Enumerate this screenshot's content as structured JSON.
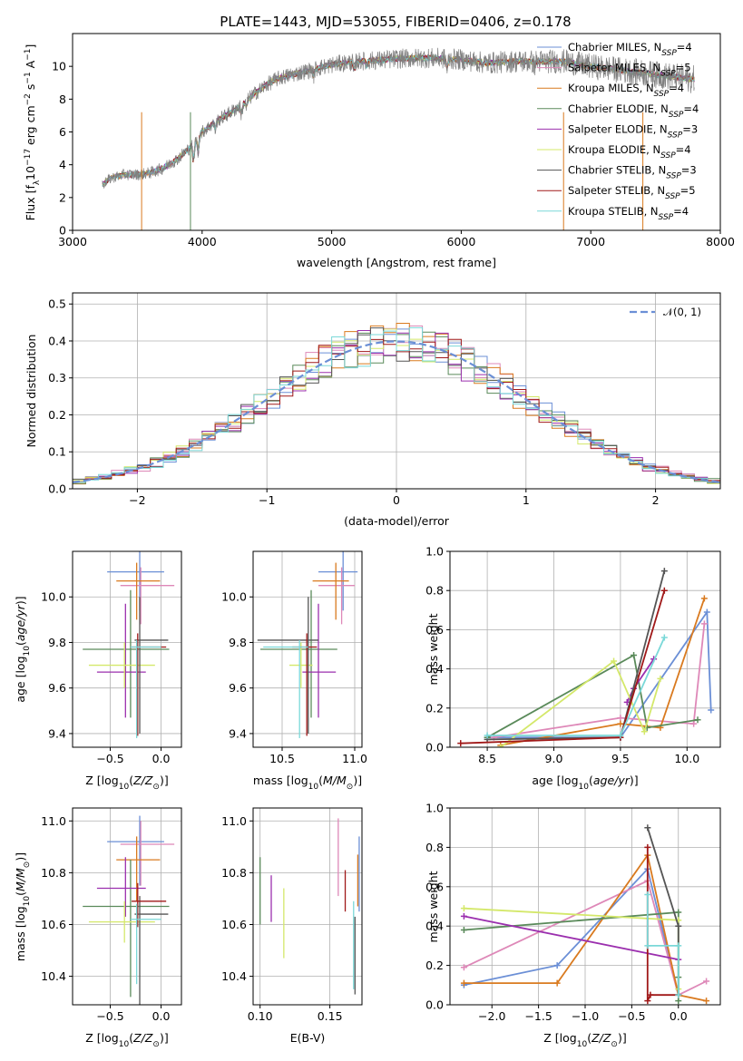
{
  "colors": {
    "chabrier_miles": "#6b8fd6",
    "salpeter_miles": "#de88b8",
    "kroupa_miles": "#d97a1f",
    "chabrier_elodie": "#5a8a5a",
    "salpeter_elodie": "#9b2fae",
    "kroupa_elodie": "#d4e86a",
    "chabrier_stelib": "#555555",
    "salpeter_stelib": "#a01818",
    "kroupa_stelib": "#7ad8d8",
    "gauss": "#6b8fd6"
  },
  "chart_data": [
    {
      "id": "spectrum",
      "type": "line",
      "title": "PLATE=1443, MJD=53055, FIBERID=0406, z=0.178",
      "xlabel": "wavelength [Angstrom, rest frame]",
      "ylabel": "Flux [f_λ10^-17 erg cm^-2 s^-1 A^-1]",
      "xlim": [
        3000,
        8000
      ],
      "ylim": [
        0,
        12
      ],
      "xticks": [
        "3000",
        "4000",
        "5000",
        "6000",
        "7000",
        "8000"
      ],
      "yticks": [
        "0",
        "2",
        "4",
        "6",
        "8",
        "10"
      ],
      "legend_position": "upper-right",
      "legend": [
        "Chabrier MILES, N_SSP=4",
        "Salpeter MILES, N_SSP=5",
        "Kroupa MILES, N_SSP=4",
        "Chabrier ELODIE, N_SSP=4",
        "Salpeter ELODIE, N_SSP=3",
        "Kroupa ELODIE, N_SSP=4",
        "Chabrier STELIB, N_SSP=3",
        "Salpeter STELIB, N_SSP=5",
        "Kroupa STELIB, N_SSP=4"
      ],
      "continuum": {
        "x": [
          3230,
          3300,
          3400,
          3500,
          3600,
          3700,
          3800,
          3900,
          4000,
          4100,
          4200,
          4300,
          4400,
          4500,
          4600,
          4700,
          4800,
          4900,
          5000,
          5200,
          5400,
          5600,
          5800,
          6000,
          6200,
          6400,
          6600,
          6800,
          7000,
          7200,
          7400,
          7600,
          7800
        ],
        "y": [
          2.8,
          3.2,
          3.4,
          3.4,
          3.5,
          3.8,
          4.3,
          5.0,
          6.0,
          6.6,
          7.1,
          7.6,
          8.3,
          8.9,
          9.3,
          9.5,
          9.7,
          9.9,
          10.1,
          10.3,
          10.4,
          10.5,
          10.5,
          10.4,
          10.2,
          10.3,
          10.3,
          10.3,
          10.0,
          9.8,
          9.6,
          9.4,
          9.2
        ]
      }
    },
    {
      "id": "residuals",
      "type": "line",
      "xlabel": "(data-model)/error",
      "ylabel": "Normed distribution",
      "xlim": [
        -2.5,
        2.5
      ],
      "ylim": [
        0,
        0.53
      ],
      "xticks": [
        "−2",
        "−1",
        "0",
        "1",
        "2"
      ],
      "yticks": [
        "0.0",
        "0.1",
        "0.2",
        "0.3",
        "0.4",
        "0.5"
      ],
      "legend": [
        "𝒩(0, 1)"
      ],
      "legend_position": "upper-right",
      "series_note": "step histograms, one per model, bin width 0.1, approximately normal"
    },
    {
      "id": "z-age",
      "type": "scatter",
      "xlabel": "Z [log10(Z/Z⊙)]",
      "ylabel": "age  [log10(age/yr)]",
      "xlim": [
        -0.87,
        0.2
      ],
      "ylim": [
        9.34,
        10.2
      ],
      "xticks": [
        "−0.5",
        "0.0"
      ],
      "yticks": [
        "9.4",
        "9.6",
        "9.8",
        "10.0"
      ],
      "errorbars": [
        {
          "key": "chabrier_miles",
          "x": -0.21,
          "xerr": [
            0.32,
            0.24
          ],
          "y": 10.11,
          "yerr": [
            0.17,
            0.09
          ]
        },
        {
          "key": "salpeter_miles",
          "x": -0.2,
          "xerr": [
            0.2,
            0.33
          ],
          "y": 10.05,
          "yerr": [
            0.17,
            0.08
          ]
        },
        {
          "key": "kroupa_miles",
          "x": -0.24,
          "xerr": [
            0.2,
            0.23
          ],
          "y": 10.07,
          "yerr": [
            0.17,
            0.08
          ]
        },
        {
          "key": "chabrier_elodie",
          "x": -0.3,
          "xerr": [
            0.47,
            0.38
          ],
          "y": 9.77,
          "yerr": [
            0.3,
            0.26
          ]
        },
        {
          "key": "salpeter_elodie",
          "x": -0.35,
          "xerr": [
            0.28,
            0.2
          ],
          "y": 9.67,
          "yerr": [
            0.2,
            0.3
          ]
        },
        {
          "key": "kroupa_elodie",
          "x": -0.36,
          "xerr": [
            0.35,
            0.3
          ],
          "y": 9.7,
          "yerr": [
            0.1,
            0.1
          ]
        },
        {
          "key": "chabrier_stelib",
          "x": -0.21,
          "xerr": [
            0.05,
            0.28
          ],
          "y": 9.81,
          "yerr": [
            0.41,
            0.19
          ]
        },
        {
          "key": "salpeter_stelib",
          "x": -0.23,
          "xerr": [
            0.06,
            0.28
          ],
          "y": 9.78,
          "yerr": [
            0.39,
            0.06
          ]
        },
        {
          "key": "kroupa_stelib",
          "x": -0.24,
          "xerr": [
            0.06,
            0.24
          ],
          "y": 9.78,
          "yerr": [
            0.4,
            0.03
          ]
        }
      ]
    },
    {
      "id": "mass-age",
      "type": "scatter",
      "xlabel": "mass [log10(M/M⊙)]",
      "xlim": [
        10.3,
        11.05
      ],
      "ylim": [
        9.34,
        10.2
      ],
      "xticks": [
        "10.5",
        "11.0"
      ],
      "yticks": [
        "9.4",
        "9.6",
        "9.8",
        "10.0"
      ],
      "errorbars": [
        {
          "key": "chabrier_miles",
          "x": 10.92,
          "xerr": [
            0.17,
            0.1
          ],
          "y": 10.11,
          "yerr": [
            0.17,
            0.09
          ]
        },
        {
          "key": "salpeter_miles",
          "x": 10.91,
          "xerr": [
            0.16,
            0.09
          ],
          "y": 10.05,
          "yerr": [
            0.17,
            0.08
          ]
        },
        {
          "key": "kroupa_miles",
          "x": 10.87,
          "xerr": [
            0.16,
            0.09
          ],
          "y": 10.07,
          "yerr": [
            0.17,
            0.08
          ]
        },
        {
          "key": "chabrier_elodie",
          "x": 10.7,
          "xerr": [
            0.35,
            0.18
          ],
          "y": 9.77,
          "yerr": [
            0.3,
            0.26
          ]
        },
        {
          "key": "salpeter_elodie",
          "x": 10.75,
          "xerr": [
            0.11,
            0.12
          ],
          "y": 9.67,
          "yerr": [
            0.2,
            0.3
          ]
        },
        {
          "key": "kroupa_elodie",
          "x": 10.63,
          "xerr": [
            0.08,
            0.08
          ],
          "y": 9.7,
          "yerr": [
            0.1,
            0.1
          ]
        },
        {
          "key": "chabrier_stelib",
          "x": 10.68,
          "xerr": [
            0.35,
            0.07
          ],
          "y": 9.81,
          "yerr": [
            0.41,
            0.19
          ]
        },
        {
          "key": "salpeter_stelib",
          "x": 10.67,
          "xerr": [
            0.1,
            0.07
          ],
          "y": 9.78,
          "yerr": [
            0.39,
            0.06
          ]
        },
        {
          "key": "kroupa_stelib",
          "x": 10.62,
          "xerr": [
            0.25,
            0.06
          ],
          "y": 9.78,
          "yerr": [
            0.4,
            0.03
          ]
        }
      ]
    },
    {
      "id": "age-weight",
      "type": "line",
      "xlabel": "age  [log10(age/yr)]",
      "ylabel": "mass weight",
      "xlim": [
        8.22,
        10.25
      ],
      "ylim": [
        0,
        1
      ],
      "xticks": [
        "8.5",
        "9.0",
        "9.5",
        "10.0"
      ],
      "yticks": [
        "0.0",
        "0.2",
        "0.4",
        "0.6",
        "0.8",
        "1.0"
      ],
      "series": [
        {
          "key": "chabrier_miles",
          "x": [
            8.5,
            9.5,
            10.15,
            10.18
          ],
          "y": [
            0.05,
            0.05,
            0.69,
            0.19
          ]
        },
        {
          "key": "salpeter_miles",
          "x": [
            8.55,
            9.5,
            10.05,
            10.13
          ],
          "y": [
            0.05,
            0.15,
            0.12,
            0.63
          ]
        },
        {
          "key": "kroupa_miles",
          "x": [
            8.6,
            9.5,
            9.8,
            10.13
          ],
          "y": [
            0.01,
            0.12,
            0.1,
            0.76
          ]
        },
        {
          "key": "chabrier_elodie",
          "x": [
            8.5,
            9.6,
            9.7,
            10.08
          ],
          "y": [
            0.05,
            0.47,
            0.1,
            0.14
          ]
        },
        {
          "key": "salpeter_elodie",
          "x": [
            9.55,
            9.6,
            9.75
          ],
          "y": [
            0.23,
            0.3,
            0.45
          ]
        },
        {
          "key": "kroupa_elodie",
          "x": [
            8.6,
            9.45,
            9.68,
            9.8
          ],
          "y": [
            0.0,
            0.44,
            0.08,
            0.35
          ]
        },
        {
          "key": "chabrier_stelib",
          "x": [
            8.5,
            9.5,
            9.83
          ],
          "y": [
            0.04,
            0.05,
            0.9
          ]
        },
        {
          "key": "salpeter_stelib",
          "x": [
            8.3,
            9.5,
            9.83
          ],
          "y": [
            0.02,
            0.05,
            0.8
          ]
        },
        {
          "key": "kroupa_stelib",
          "x": [
            8.5,
            9.5,
            9.83
          ],
          "y": [
            0.06,
            0.06,
            0.56
          ]
        }
      ]
    },
    {
      "id": "z-mass",
      "type": "scatter",
      "xlabel": "Z [log10(Z/Z⊙)]",
      "ylabel": "mass [log10(M/M⊙)]",
      "xlim": [
        -0.87,
        0.2
      ],
      "ylim": [
        10.29,
        11.05
      ],
      "xticks": [
        "−0.5",
        "0.0"
      ],
      "yticks": [
        "10.4",
        "10.6",
        "10.8",
        "11.0"
      ],
      "errorbars": [
        {
          "key": "chabrier_miles",
          "x": -0.21,
          "xerr": [
            0.32,
            0.24
          ],
          "y": 10.92,
          "yerr": [
            0.17,
            0.1
          ]
        },
        {
          "key": "salpeter_miles",
          "x": -0.2,
          "xerr": [
            0.2,
            0.33
          ],
          "y": 10.91,
          "yerr": [
            0.16,
            0.09
          ]
        },
        {
          "key": "kroupa_miles",
          "x": -0.24,
          "xerr": [
            0.2,
            0.23
          ],
          "y": 10.85,
          "yerr": [
            0.16,
            0.09
          ]
        },
        {
          "key": "chabrier_elodie",
          "x": -0.3,
          "xerr": [
            0.47,
            0.38
          ],
          "y": 10.67,
          "yerr": [
            0.35,
            0.18
          ]
        },
        {
          "key": "salpeter_elodie",
          "x": -0.35,
          "xerr": [
            0.28,
            0.2
          ],
          "y": 10.74,
          "yerr": [
            0.11,
            0.12
          ]
        },
        {
          "key": "kroupa_elodie",
          "x": -0.36,
          "xerr": [
            0.35,
            0.3
          ],
          "y": 10.61,
          "yerr": [
            0.08,
            0.08
          ]
        },
        {
          "key": "chabrier_stelib",
          "x": -0.21,
          "xerr": [
            0.05,
            0.28
          ],
          "y": 10.64,
          "yerr": [
            0.35,
            0.07
          ]
        },
        {
          "key": "salpeter_stelib",
          "x": -0.23,
          "xerr": [
            0.06,
            0.28
          ],
          "y": 10.69,
          "yerr": [
            0.1,
            0.07
          ]
        },
        {
          "key": "kroupa_stelib",
          "x": -0.24,
          "xerr": [
            0.06,
            0.24
          ],
          "y": 10.62,
          "yerr": [
            0.25,
            0.06
          ]
        }
      ]
    },
    {
      "id": "ebv-mass",
      "type": "scatter",
      "xlabel": "E(B-V)",
      "xlim": [
        0.095,
        0.173
      ],
      "ylim": [
        10.29,
        11.05
      ],
      "xticks": [
        "0.10",
        "0.15"
      ],
      "yticks": [
        "10.4",
        "10.6",
        "10.8",
        "11.0"
      ],
      "errorbars": [
        {
          "key": "chabrier_miles",
          "x": 0.171,
          "y": 10.78,
          "yerr": [
            0.13,
            0.16
          ]
        },
        {
          "key": "salpeter_miles",
          "x": 0.156,
          "y": 10.86,
          "yerr": [
            0.15,
            0.15
          ]
        },
        {
          "key": "kroupa_miles",
          "x": 0.17,
          "y": 10.77,
          "yerr": [
            0.1,
            0.1
          ]
        },
        {
          "key": "chabrier_elodie",
          "x": 0.1,
          "y": 10.73,
          "yerr": [
            0.13,
            0.13
          ]
        },
        {
          "key": "salpeter_elodie",
          "x": 0.108,
          "y": 10.7,
          "yerr": [
            0.09,
            0.09
          ]
        },
        {
          "key": "kroupa_elodie",
          "x": 0.117,
          "y": 10.6,
          "yerr": [
            0.13,
            0.14
          ]
        },
        {
          "key": "chabrier_stelib",
          "x": 0.168,
          "y": 10.48,
          "yerr": [
            0.15,
            0.15
          ]
        },
        {
          "key": "salpeter_stelib",
          "x": 0.161,
          "y": 10.73,
          "yerr": [
            0.08,
            0.08
          ]
        },
        {
          "key": "kroupa_stelib",
          "x": 0.167,
          "y": 10.52,
          "yerr": [
            0.17,
            0.17
          ]
        }
      ]
    },
    {
      "id": "z-weight",
      "type": "line",
      "xlabel": "Z [log10(Z/Z⊙)]",
      "ylabel": "mass weight",
      "xlim": [
        -2.45,
        0.45
      ],
      "ylim": [
        0,
        1
      ],
      "xticks": [
        "−2.0",
        "−1.5",
        "−1.0",
        "−0.5",
        "0.0"
      ],
      "yticks": [
        "0.0",
        "0.2",
        "0.4",
        "0.6",
        "0.8",
        "1.0"
      ],
      "series": [
        {
          "key": "chabrier_miles",
          "x": [
            -2.3,
            -1.3,
            -0.33,
            0.0,
            0.0
          ],
          "y": [
            0.1,
            0.2,
            0.69,
            0.05,
            0.05
          ]
        },
        {
          "key": "salpeter_miles",
          "x": [
            -2.3,
            -0.33,
            0.0,
            0.3
          ],
          "y": [
            0.19,
            0.63,
            0.05,
            0.12
          ]
        },
        {
          "key": "kroupa_miles",
          "x": [
            -2.3,
            -1.3,
            -0.33,
            0.0,
            0.3
          ],
          "y": [
            0.11,
            0.11,
            0.76,
            0.05,
            0.02
          ]
        },
        {
          "key": "chabrier_elodie",
          "x": [
            -2.3,
            0.0,
            0.0,
            0.0
          ],
          "y": [
            0.38,
            0.47,
            0.14,
            0.02
          ]
        },
        {
          "key": "salpeter_elodie",
          "x": [
            -2.3,
            0.0
          ],
          "y": [
            0.45,
            0.23
          ]
        },
        {
          "key": "kroupa_elodie",
          "x": [
            -2.3,
            0.0,
            0.0
          ],
          "y": [
            0.49,
            0.43,
            0.08
          ]
        },
        {
          "key": "chabrier_stelib",
          "x": [
            -0.33,
            0.0,
            0.0
          ],
          "y": [
            0.9,
            0.4,
            0.05
          ]
        },
        {
          "key": "salpeter_stelib",
          "x": [
            -0.33,
            -0.33,
            -0.3,
            0.0
          ],
          "y": [
            0.8,
            0.02,
            0.05,
            0.05
          ]
        },
        {
          "key": "kroupa_stelib",
          "x": [
            -0.33,
            -0.33,
            0.0,
            0.0
          ],
          "y": [
            0.56,
            0.3,
            0.3,
            0.05
          ]
        }
      ]
    }
  ]
}
